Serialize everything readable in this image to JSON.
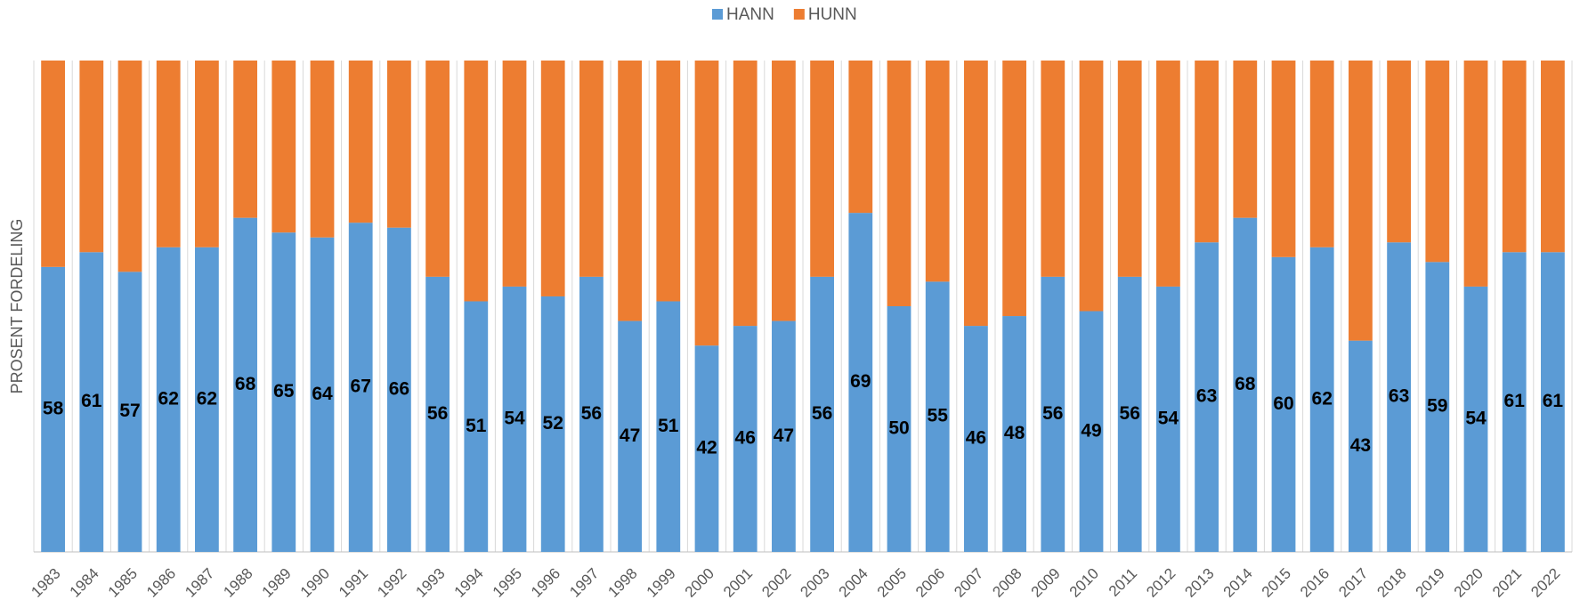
{
  "chart_data": {
    "type": "stacked_bar_100",
    "y_label": "PROSENT FORDELING",
    "categories": [
      "1983",
      "1984",
      "1985",
      "1986",
      "1987",
      "1988",
      "1989",
      "1990",
      "1991",
      "1992",
      "1993",
      "1994",
      "1995",
      "1996",
      "1997",
      "1998",
      "1999",
      "2000",
      "2001",
      "2002",
      "2003",
      "2004",
      "2005",
      "2006",
      "2007",
      "2008",
      "2009",
      "2010",
      "2011",
      "2012",
      "2013",
      "2014",
      "2015",
      "2016",
      "2017",
      "2018",
      "2019",
      "2020",
      "2021",
      "2022"
    ],
    "series": [
      {
        "name": "HANN",
        "color": "#5b9bd5",
        "labels": true,
        "values": [
          58,
          61,
          57,
          62,
          62,
          68,
          65,
          64,
          67,
          66,
          56,
          51,
          54,
          52,
          56,
          47,
          51,
          42,
          46,
          47,
          56,
          69,
          50,
          55,
          46,
          48,
          56,
          49,
          56,
          54,
          63,
          68,
          60,
          62,
          43,
          63,
          59,
          54,
          61,
          61
        ]
      },
      {
        "name": "HUNN",
        "color": "#ed7d31",
        "labels": false,
        "values": [
          42,
          39,
          43,
          38,
          38,
          32,
          35,
          36,
          33,
          34,
          44,
          49,
          46,
          48,
          44,
          53,
          49,
          58,
          54,
          53,
          44,
          31,
          50,
          45,
          54,
          52,
          44,
          51,
          44,
          46,
          37,
          32,
          40,
          38,
          57,
          37,
          41,
          46,
          39,
          39
        ]
      }
    ],
    "ylim": [
      0,
      100
    ]
  }
}
